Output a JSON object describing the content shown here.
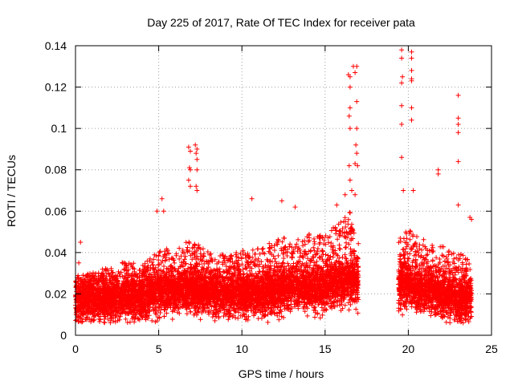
{
  "chart_data": {
    "type": "scatter",
    "title": "Day 225 of 2017, Rate Of TEC Index for receiver pata",
    "xlabel": "GPS time / hours",
    "ylabel": "ROTI / TECUs",
    "xlim": [
      0,
      25
    ],
    "ylim": [
      0,
      0.14
    ],
    "x_ticks": [
      "0",
      "5",
      "10",
      "15",
      "20",
      "25"
    ],
    "y_ticks": [
      "0",
      "0.02",
      "0.04",
      "0.06",
      "0.08",
      "0.1",
      "0.12",
      "0.14"
    ],
    "grid": true,
    "marker": "+",
    "color": "#ff0000",
    "segments": [
      {
        "x_start": 0.0,
        "x_end": 17.0,
        "description": "dense band of points"
      },
      {
        "x_start": 19.4,
        "x_end": 23.8,
        "description": "dense band of points"
      }
    ],
    "envelope": {
      "x": [
        0,
        1,
        2,
        3,
        4,
        5,
        6,
        7,
        8,
        9,
        10,
        11,
        12,
        13,
        14,
        15,
        16,
        16.5,
        17
      ],
      "median": [
        0.016,
        0.017,
        0.017,
        0.018,
        0.018,
        0.02,
        0.021,
        0.022,
        0.021,
        0.02,
        0.02,
        0.02,
        0.021,
        0.022,
        0.022,
        0.023,
        0.025,
        0.026,
        0.025
      ],
      "upper": [
        0.028,
        0.03,
        0.032,
        0.035,
        0.033,
        0.04,
        0.042,
        0.045,
        0.04,
        0.038,
        0.04,
        0.042,
        0.045,
        0.047,
        0.048,
        0.05,
        0.055,
        0.058,
        0.05
      ]
    },
    "envelope_late": {
      "x": [
        19.4,
        20,
        21,
        22,
        23,
        23.8
      ],
      "median": [
        0.025,
        0.024,
        0.022,
        0.02,
        0.018,
        0.017
      ],
      "upper": [
        0.045,
        0.05,
        0.045,
        0.042,
        0.04,
        0.035
      ]
    },
    "notable_points": [
      {
        "x": 0.2,
        "y": 0.035
      },
      {
        "x": 0.3,
        "y": 0.045
      },
      {
        "x": 5.2,
        "y": 0.066
      },
      {
        "x": 4.9,
        "y": 0.06
      },
      {
        "x": 5.3,
        "y": 0.06
      },
      {
        "x": 6.8,
        "y": 0.091
      },
      {
        "x": 6.9,
        "y": 0.089
      },
      {
        "x": 6.85,
        "y": 0.081
      },
      {
        "x": 6.9,
        "y": 0.08
      },
      {
        "x": 6.8,
        "y": 0.075
      },
      {
        "x": 6.9,
        "y": 0.072
      },
      {
        "x": 7.2,
        "y": 0.092
      },
      {
        "x": 7.3,
        "y": 0.09
      },
      {
        "x": 7.25,
        "y": 0.088
      },
      {
        "x": 7.3,
        "y": 0.085
      },
      {
        "x": 7.3,
        "y": 0.08
      },
      {
        "x": 7.25,
        "y": 0.072
      },
      {
        "x": 7.3,
        "y": 0.07
      },
      {
        "x": 10.6,
        "y": 0.066
      },
      {
        "x": 12.4,
        "y": 0.065
      },
      {
        "x": 13.2,
        "y": 0.062
      },
      {
        "x": 15.7,
        "y": 0.063
      },
      {
        "x": 16.2,
        "y": 0.068
      },
      {
        "x": 16.4,
        "y": 0.126
      },
      {
        "x": 16.5,
        "y": 0.125
      },
      {
        "x": 16.5,
        "y": 0.12
      },
      {
        "x": 16.5,
        "y": 0.11
      },
      {
        "x": 16.45,
        "y": 0.106
      },
      {
        "x": 16.5,
        "y": 0.1
      },
      {
        "x": 16.45,
        "y": 0.082
      },
      {
        "x": 16.5,
        "y": 0.075
      },
      {
        "x": 16.7,
        "y": 0.13
      },
      {
        "x": 16.9,
        "y": 0.13
      },
      {
        "x": 16.8,
        "y": 0.127
      },
      {
        "x": 16.9,
        "y": 0.113
      },
      {
        "x": 16.9,
        "y": 0.1
      },
      {
        "x": 16.85,
        "y": 0.092
      },
      {
        "x": 16.9,
        "y": 0.088
      },
      {
        "x": 16.8,
        "y": 0.083
      },
      {
        "x": 16.95,
        "y": 0.082
      },
      {
        "x": 16.6,
        "y": 0.07
      },
      {
        "x": 16.8,
        "y": 0.068
      },
      {
        "x": 19.6,
        "y": 0.138
      },
      {
        "x": 19.6,
        "y": 0.134
      },
      {
        "x": 19.6,
        "y": 0.122
      },
      {
        "x": 19.65,
        "y": 0.125
      },
      {
        "x": 19.6,
        "y": 0.111
      },
      {
        "x": 19.6,
        "y": 0.102
      },
      {
        "x": 19.6,
        "y": 0.086
      },
      {
        "x": 19.7,
        "y": 0.07
      },
      {
        "x": 20.2,
        "y": 0.137
      },
      {
        "x": 20.2,
        "y": 0.134
      },
      {
        "x": 20.2,
        "y": 0.128
      },
      {
        "x": 20.2,
        "y": 0.124
      },
      {
        "x": 20.2,
        "y": 0.123
      },
      {
        "x": 20.2,
        "y": 0.11
      },
      {
        "x": 20.2,
        "y": 0.104
      },
      {
        "x": 20.3,
        "y": 0.07
      },
      {
        "x": 21.8,
        "y": 0.08
      },
      {
        "x": 21.8,
        "y": 0.078
      },
      {
        "x": 23.0,
        "y": 0.116
      },
      {
        "x": 23.0,
        "y": 0.105
      },
      {
        "x": 23.0,
        "y": 0.102
      },
      {
        "x": 23.0,
        "y": 0.098
      },
      {
        "x": 23.0,
        "y": 0.084
      },
      {
        "x": 23.0,
        "y": 0.063
      },
      {
        "x": 23.7,
        "y": 0.057
      },
      {
        "x": 23.8,
        "y": 0.056
      }
    ]
  }
}
